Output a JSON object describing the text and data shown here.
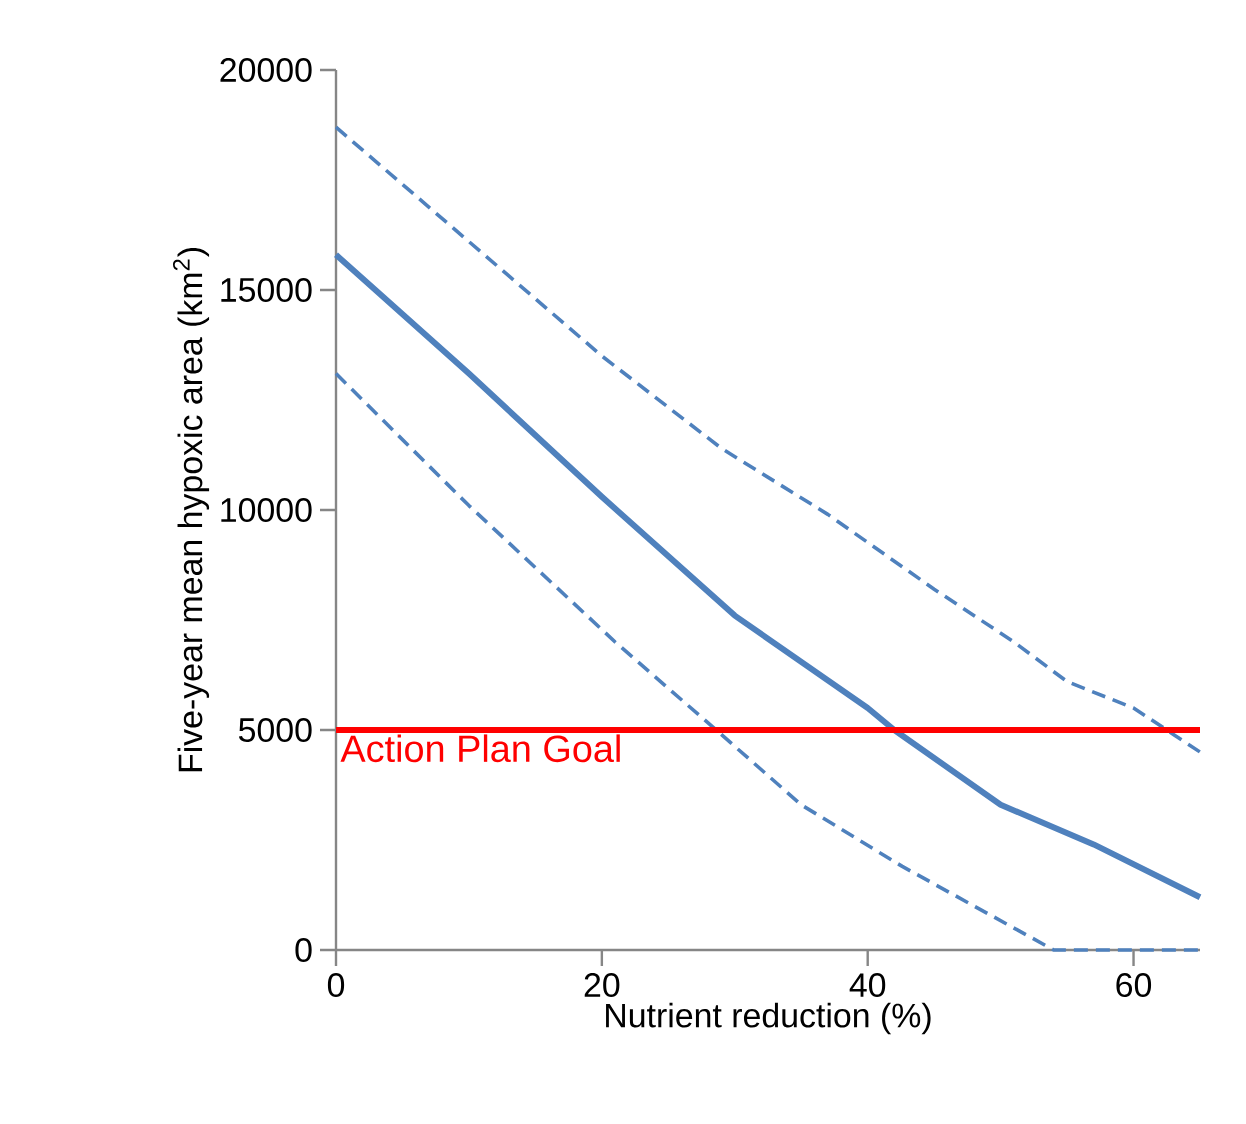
{
  "chart_data": {
    "type": "line",
    "xlabel": "Nutrient reduction (%)",
    "ylabel": "Five-year mean hypoxic area (km$^{2}$)",
    "xlim": [
      0,
      65
    ],
    "xticks": [
      0,
      20,
      40,
      60
    ],
    "ylim": [
      0,
      20000
    ],
    "yticks": [
      0,
      5000,
      10000,
      15000,
      20000
    ],
    "grid": false,
    "marker": "none",
    "series": [
      {
        "color": "#4f81bd",
        "line_style": "dashed",
        "x": [
          0,
          10,
          20,
          29,
          37,
          45,
          51,
          55,
          60,
          63,
          65
        ],
        "values": [
          18700,
          16100,
          13500,
          11400,
          9900,
          8200,
          7000,
          6100,
          5500,
          4900,
          4500
        ]
      },
      {
        "color": "#4f81bd",
        "line_style": "solid",
        "x": [
          0,
          10,
          20,
          30,
          40,
          42,
          50,
          57,
          65
        ],
        "values": [
          15800,
          13100,
          10300,
          7600,
          5500,
          5000,
          3300,
          2400,
          1200
        ]
      },
      {
        "color": "#4f81bd",
        "line_style": "dashed",
        "x": [
          0,
          10,
          21,
          28.6,
          35,
          42.6,
          48,
          54,
          65
        ],
        "values": [
          13100,
          10100,
          7000,
          5000,
          3300,
          1900,
          1000,
          0,
          0
        ]
      }
    ],
    "ref_lines": [
      {
        "axis": "y",
        "value": 5000,
        "label": "Action Plan Goal",
        "color": "#ff0000",
        "line_style": "solid"
      }
    ]
  }
}
